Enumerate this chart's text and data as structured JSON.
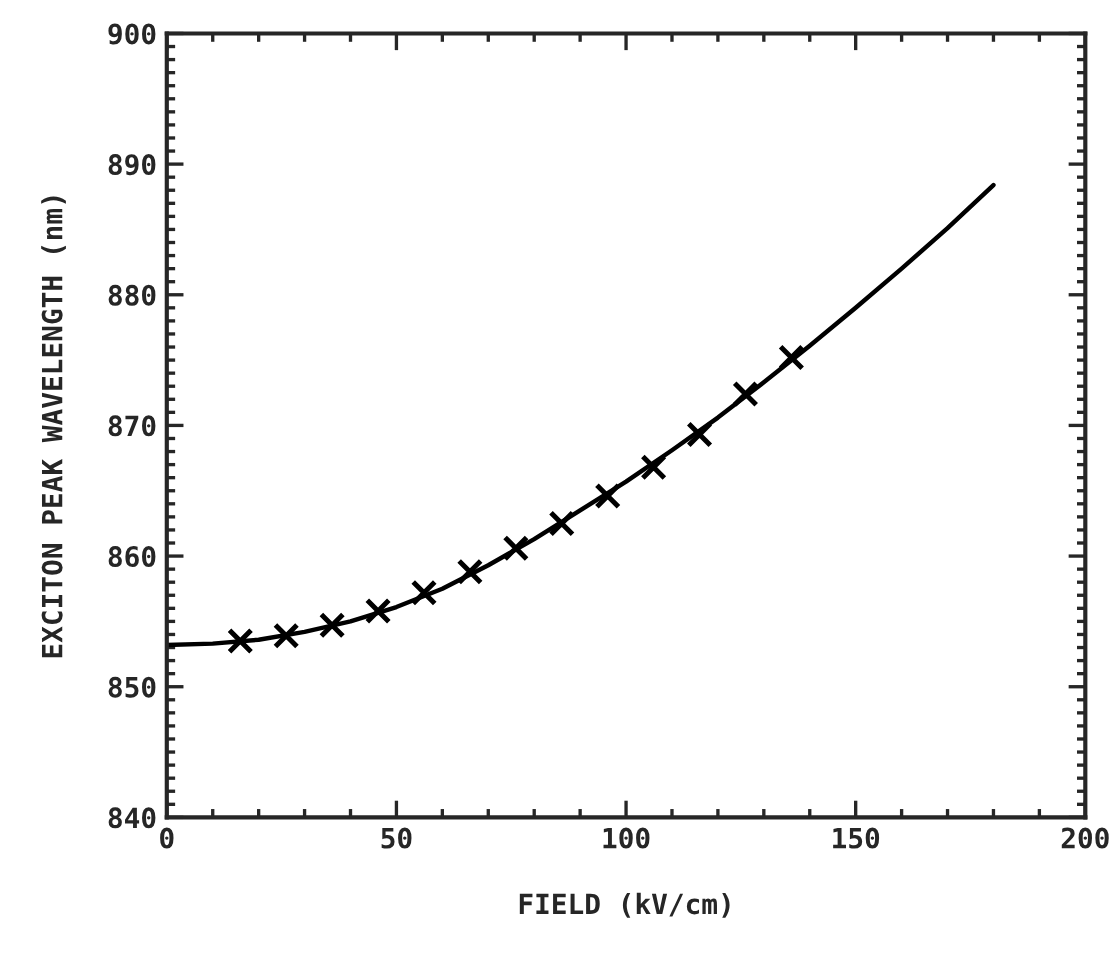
{
  "chart_data": {
    "type": "line",
    "xlabel": "FIELD (kV/cm)",
    "ylabel": "EXCITON PEAK WAVELENGTH (nm)",
    "xlim": [
      0,
      200
    ],
    "ylim": [
      840,
      900
    ],
    "xticks": [
      0,
      50,
      100,
      150,
      200
    ],
    "yticks": [
      840,
      850,
      860,
      870,
      880,
      890,
      900
    ],
    "grid": false,
    "legend": false,
    "series": [
      {
        "color": "#000000",
        "marker": "none",
        "line_style": "solid",
        "x": [
          0,
          10,
          20,
          30,
          40,
          50,
          60,
          70,
          80,
          90,
          100,
          110,
          120,
          130,
          140,
          150,
          160,
          170,
          180
        ],
        "values": [
          853.2,
          853.3,
          853.6,
          854.2,
          855.0,
          856.1,
          857.5,
          859.3,
          861.3,
          863.5,
          865.7,
          868.1,
          870.6,
          873.3,
          876.1,
          879.0,
          882.0,
          885.1,
          888.4
        ]
      },
      {
        "type": "scatter",
        "color": "#000000",
        "marker": "cross",
        "x": [
          16,
          26,
          36,
          46,
          56,
          66,
          76,
          86,
          96,
          106,
          116,
          126,
          136
        ],
        "values": [
          853.5,
          853.9,
          854.7,
          855.8,
          857.2,
          858.8,
          860.6,
          862.5,
          864.6,
          866.8,
          869.3,
          872.4,
          875.2
        ]
      }
    ]
  }
}
